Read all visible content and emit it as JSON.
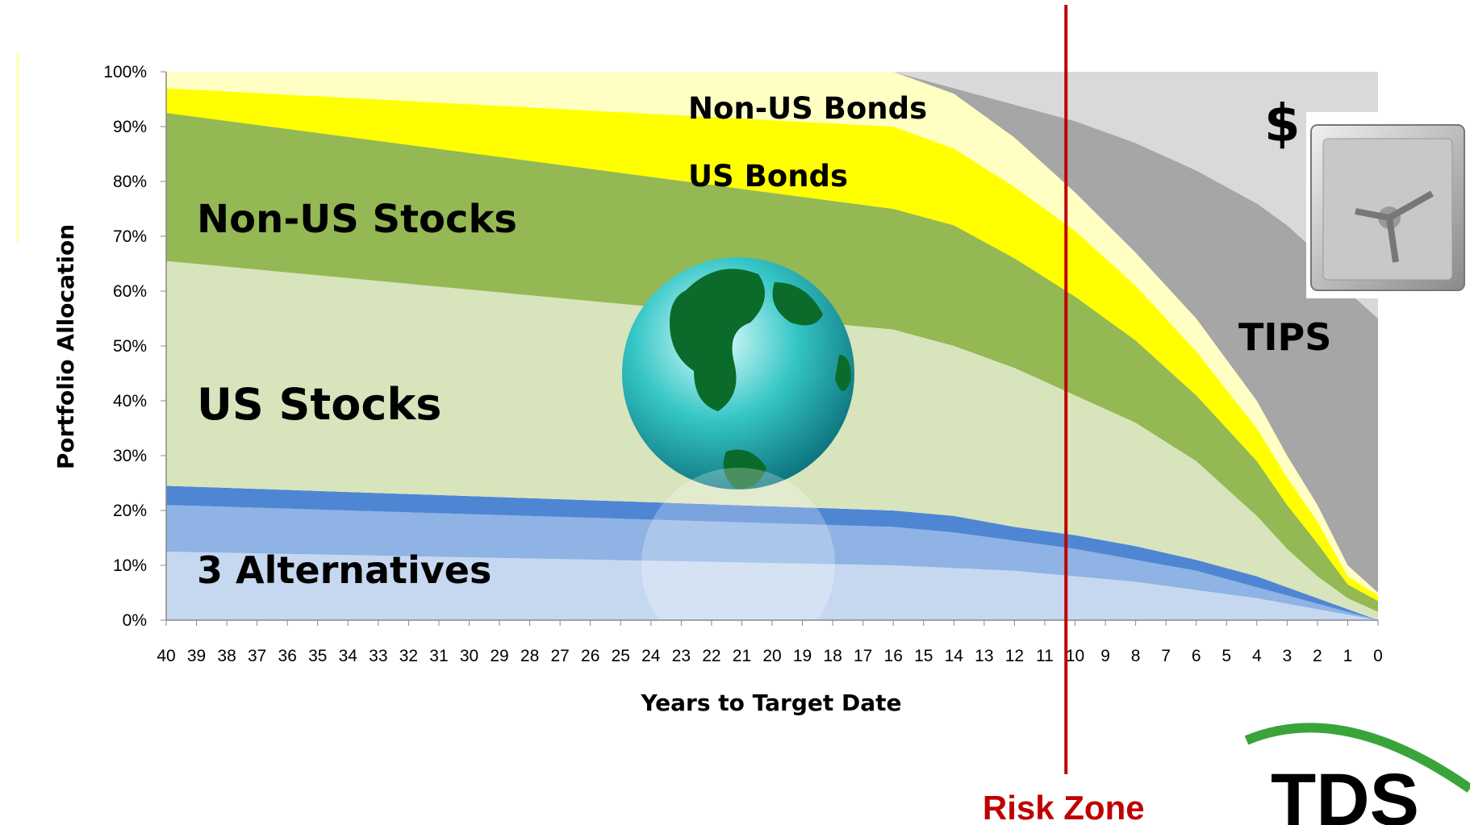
{
  "chart_data": {
    "type": "stacked_area",
    "x": [
      40,
      16,
      14,
      12,
      10,
      8,
      6,
      4,
      3,
      2,
      1,
      0
    ],
    "xlim": [
      40,
      0
    ],
    "xticks": [
      40,
      39,
      38,
      37,
      36,
      35,
      34,
      33,
      32,
      31,
      30,
      29,
      28,
      27,
      26,
      25,
      24,
      23,
      22,
      21,
      20,
      19,
      18,
      17,
      16,
      15,
      14,
      13,
      12,
      11,
      10,
      9,
      8,
      7,
      6,
      5,
      4,
      3,
      2,
      1,
      0
    ],
    "ylim": [
      0,
      100
    ],
    "yticks": [
      {
        "value": 0,
        "label": "0%"
      },
      {
        "value": 10,
        "label": "10%"
      },
      {
        "value": 20,
        "label": "20%"
      },
      {
        "value": 30,
        "label": "30%"
      },
      {
        "value": 40,
        "label": "40%"
      },
      {
        "value": 50,
        "label": "50%"
      },
      {
        "value": 60,
        "label": "60%"
      },
      {
        "value": 70,
        "label": "70%"
      },
      {
        "value": 80,
        "label": "80%"
      },
      {
        "value": 90,
        "label": "90%"
      },
      {
        "value": 100,
        "label": "100%"
      }
    ],
    "x_label": "Years to Target Date",
    "y_label": "Portfolio Allocation",
    "series": [
      {
        "color": "#c6d8f0",
        "values": [
          12.5,
          10,
          9.5,
          9,
          8,
          7,
          5.5,
          4,
          3,
          2,
          1,
          0
        ]
      },
      {
        "color": "#8eb3e4",
        "values": [
          8.5,
          7,
          6.5,
          5.5,
          5,
          4,
          3.5,
          2,
          1.5,
          1,
          0.5,
          0
        ]
      },
      {
        "color": "#4f86d4",
        "values": [
          3.5,
          3,
          3,
          2.5,
          2.5,
          2.5,
          2,
          2,
          1.5,
          1,
          0.5,
          0
        ]
      },
      {
        "name": "US Stocks",
        "color": "#d8e4bc",
        "values": [
          41,
          33,
          31,
          29,
          25.5,
          22.5,
          18,
          11,
          7,
          4,
          2,
          1.5
        ]
      },
      {
        "name": "Non-US Stocks",
        "color": "#94b853",
        "values": [
          27,
          22,
          22,
          20,
          18,
          15,
          12,
          10,
          8,
          6,
          2.5,
          2
        ]
      },
      {
        "name": "US Bonds",
        "color": "#ffff00",
        "values": [
          4.5,
          15,
          14,
          13,
          12,
          10,
          8,
          6,
          5,
          4,
          1.5,
          1
        ]
      },
      {
        "name": "Non-US Bonds",
        "color": "#ffffc4",
        "values": [
          3,
          10,
          10,
          9,
          7,
          6,
          6,
          5,
          4,
          3,
          2,
          0.5
        ]
      },
      {
        "name": "TIPS",
        "color": "#a6a6a6",
        "values": [
          0,
          0,
          1,
          6,
          13,
          20,
          27,
          36,
          42,
          46,
          50,
          50
        ]
      },
      {
        "name": "$",
        "color": "#d9d9d9",
        "values": [
          0,
          0,
          3,
          6,
          9,
          13,
          18,
          24,
          28,
          33,
          40,
          45
        ]
      }
    ],
    "annotations": [
      "3 Alternatives"
    ],
    "risk_zone": {
      "label": "Risk Zone",
      "x": 10.3,
      "color": "#c00000"
    },
    "logo": "TDS"
  }
}
